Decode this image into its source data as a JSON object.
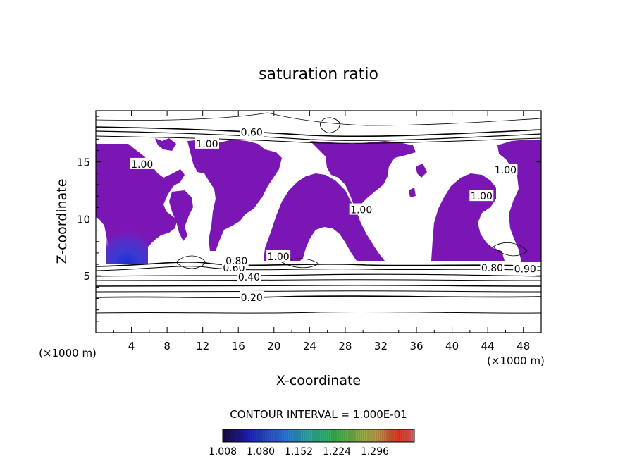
{
  "chart_data": {
    "type": "heatmap",
    "title": "saturation ratio",
    "xlabel": "X-coordinate",
    "ylabel": "Z-coordinate",
    "x_unit_left": "(×1000 m)",
    "x_unit_right": "(×1000 m)",
    "xlim": [
      0,
      50
    ],
    "ylim": [
      0,
      19.5
    ],
    "xticks": [
      "4",
      "8",
      "12",
      "16",
      "20",
      "24",
      "28",
      "32",
      "36",
      "40",
      "44",
      "48"
    ],
    "yticks": [
      "5",
      "10",
      "15"
    ],
    "contour_interval_text": "CONTOUR INTERVAL = 1.000E-01",
    "contour_labels": [
      {
        "text": "0.20",
        "x": 17.5,
        "y": 3.1
      },
      {
        "text": "0.40",
        "x": 17.2,
        "y": 4.9
      },
      {
        "text": "0.60",
        "x": 15.5,
        "y": 5.7
      },
      {
        "text": "0.80",
        "x": 15.8,
        "y": 6.3
      },
      {
        "text": "0.80",
        "x": 44.5,
        "y": 5.7
      },
      {
        "text": "0.90",
        "x": 48.2,
        "y": 5.6
      },
      {
        "text": "1.00",
        "x": 20.5,
        "y": 6.7
      },
      {
        "text": "1.00",
        "x": 12.5,
        "y": 16.6
      },
      {
        "text": "0.60",
        "x": 17.5,
        "y": 17.6
      },
      {
        "text": "1.00",
        "x": 5.2,
        "y": 14.8
      },
      {
        "text": "1.00",
        "x": 29.8,
        "y": 10.8
      },
      {
        "text": "1.00",
        "x": 43.3,
        "y": 12.0
      },
      {
        "text": "1.00",
        "x": 46.0,
        "y": 14.3
      }
    ],
    "colorbar": {
      "ticks": [
        "1.008",
        "1.080",
        "1.152",
        "1.224",
        "1.296"
      ],
      "range": [
        1.008,
        1.296
      ]
    },
    "fill_color": "#7a17b4"
  }
}
